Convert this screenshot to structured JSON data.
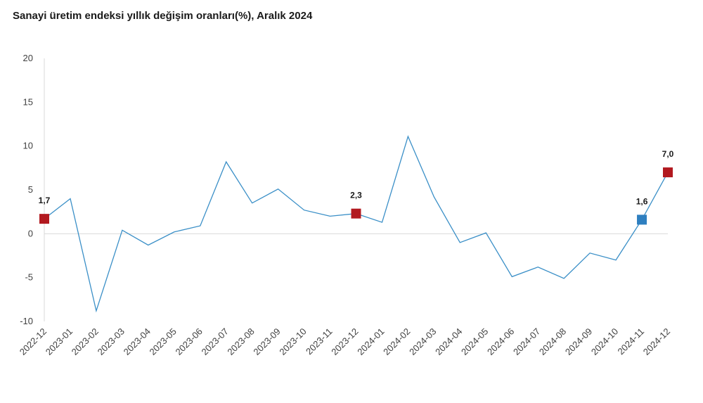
{
  "chart_data": {
    "type": "line",
    "title": "Sanayi üretim endeksi yıllık değişim oranları(%), Aralık 2024",
    "xlabel": "",
    "ylabel": "",
    "ylim": [
      -10,
      20
    ],
    "yticks": [
      20,
      15,
      10,
      5,
      0,
      -5,
      -10
    ],
    "grid": false,
    "categories": [
      "2022-12",
      "2023-01",
      "2023-02",
      "2023-03",
      "2023-04",
      "2023-05",
      "2023-06",
      "2023-07",
      "2023-08",
      "2023-09",
      "2023-10",
      "2023-11",
      "2023-12",
      "2024-01",
      "2024-02",
      "2024-03",
      "2024-04",
      "2024-05",
      "2024-06",
      "2024-07",
      "2024-08",
      "2024-09",
      "2024-10",
      "2024-11",
      "2024-12"
    ],
    "series": [
      {
        "values": [
          1.7,
          4.0,
          -8.8,
          0.4,
          -1.3,
          0.2,
          0.9,
          8.2,
          3.5,
          5.1,
          2.7,
          2.0,
          2.3,
          1.3,
          11.1,
          4.2,
          -1.0,
          0.1,
          -4.9,
          -3.8,
          -5.1,
          -2.2,
          -3.0,
          1.6,
          7.0
        ]
      }
    ],
    "line_color": "#3a8fc7",
    "highlights": [
      {
        "index": 0,
        "label": "1,7",
        "color": "#b2191f"
      },
      {
        "index": 12,
        "label": "2,3",
        "color": "#b2191f"
      },
      {
        "index": 23,
        "label": "1,6",
        "color": "#2e7fc0"
      },
      {
        "index": 24,
        "label": "7,0",
        "color": "#b2191f"
      }
    ]
  }
}
